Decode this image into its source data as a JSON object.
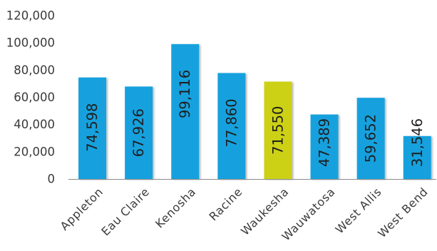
{
  "chart_data": {
    "type": "bar",
    "categories": [
      "Appleton",
      "Eau Claire",
      "Kenosha",
      "Racine",
      "Waukesha",
      "Wauwatosa",
      "West Allis",
      "West Bend"
    ],
    "series": [
      {
        "values": [
          74598,
          67926,
          99116,
          77860,
          71550,
          47389,
          59652,
          31546
        ],
        "colors": [
          "#12a1de",
          "#12a1de",
          "#12a1de",
          "#12a1de",
          "#cdd118",
          "#12a1de",
          "#12a1de",
          "#12a1de"
        ]
      }
    ],
    "data_labels": [
      "74,598",
      "67,926",
      "99,116",
      "77,860",
      "71,550",
      "47,389",
      "59,652",
      "31,546"
    ],
    "ylim": [
      0,
      120000
    ],
    "yticks": [
      0,
      20000,
      40000,
      60000,
      80000,
      100000,
      120000
    ],
    "ytick_labels": [
      "0",
      "20,000",
      "40,000",
      "60,000",
      "80,000",
      "100,000",
      "120,000"
    ],
    "grid": false
  }
}
